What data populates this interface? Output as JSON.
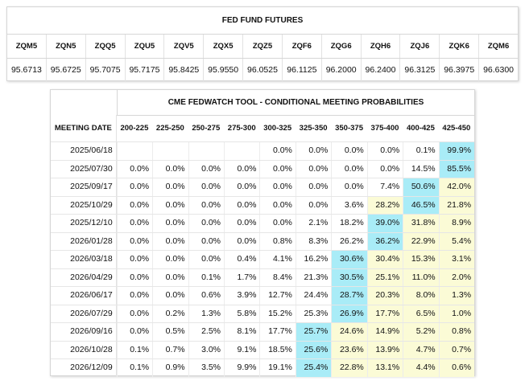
{
  "futures": {
    "title": "FED FUND FUTURES",
    "contracts": [
      {
        "code": "ZQM5",
        "price": "95.6713"
      },
      {
        "code": "ZQN5",
        "price": "95.6725"
      },
      {
        "code": "ZQQ5",
        "price": "95.7075"
      },
      {
        "code": "ZQU5",
        "price": "95.7175"
      },
      {
        "code": "ZQV5",
        "price": "95.8425"
      },
      {
        "code": "ZQX5",
        "price": "95.9550"
      },
      {
        "code": "ZQZ5",
        "price": "96.0525"
      },
      {
        "code": "ZQF6",
        "price": "96.1125"
      },
      {
        "code": "ZQG6",
        "price": "96.2000"
      },
      {
        "code": "ZQH6",
        "price": "96.2400"
      },
      {
        "code": "ZQJ6",
        "price": "96.3125"
      },
      {
        "code": "ZQK6",
        "price": "96.3975"
      },
      {
        "code": "ZQM6",
        "price": "96.6300"
      }
    ]
  },
  "fedwatch": {
    "title": "CME FEDWATCH TOOL - CONDITIONAL MEETING PROBABILITIES",
    "date_header": "MEETING DATE",
    "rate_headers": [
      "200-225",
      "225-250",
      "250-275",
      "275-300",
      "300-325",
      "325-350",
      "350-375",
      "375-400",
      "400-425",
      "425-450"
    ],
    "colors": {
      "blue": "#a9ecf7",
      "yellow": "#fbfbd6"
    },
    "rows": [
      {
        "date": "2025/06/18",
        "values": [
          "",
          "",
          "",
          "",
          "0.0%",
          "0.0%",
          "0.0%",
          "0.0%",
          "0.1%",
          "99.9%"
        ],
        "shade": [
          "",
          "",
          "",
          "",
          "",
          "",
          "",
          "",
          "",
          "blue"
        ]
      },
      {
        "date": "2025/07/30",
        "values": [
          "0.0%",
          "0.0%",
          "0.0%",
          "0.0%",
          "0.0%",
          "0.0%",
          "0.0%",
          "0.0%",
          "14.5%",
          "85.5%"
        ],
        "shade": [
          "",
          "",
          "",
          "",
          "",
          "",
          "",
          "",
          "",
          "blue"
        ]
      },
      {
        "date": "2025/09/17",
        "values": [
          "0.0%",
          "0.0%",
          "0.0%",
          "0.0%",
          "0.0%",
          "0.0%",
          "0.0%",
          "7.4%",
          "50.6%",
          "42.0%"
        ],
        "shade": [
          "",
          "",
          "",
          "",
          "",
          "",
          "",
          "",
          "blue",
          "yellow"
        ]
      },
      {
        "date": "2025/10/29",
        "values": [
          "0.0%",
          "0.0%",
          "0.0%",
          "0.0%",
          "0.0%",
          "0.0%",
          "3.6%",
          "28.2%",
          "46.5%",
          "21.8%"
        ],
        "shade": [
          "",
          "",
          "",
          "",
          "",
          "",
          "",
          "yellow",
          "blue",
          "yellow"
        ]
      },
      {
        "date": "2025/12/10",
        "values": [
          "0.0%",
          "0.0%",
          "0.0%",
          "0.0%",
          "0.0%",
          "2.1%",
          "18.2%",
          "39.0%",
          "31.8%",
          "8.9%"
        ],
        "shade": [
          "",
          "",
          "",
          "",
          "",
          "",
          "",
          "blue",
          "yellow",
          "yellow"
        ]
      },
      {
        "date": "2026/01/28",
        "values": [
          "0.0%",
          "0.0%",
          "0.0%",
          "0.0%",
          "0.8%",
          "8.3%",
          "26.2%",
          "36.2%",
          "22.9%",
          "5.4%"
        ],
        "shade": [
          "",
          "",
          "",
          "",
          "",
          "",
          "",
          "blue",
          "yellow",
          "yellow"
        ]
      },
      {
        "date": "2026/03/18",
        "values": [
          "0.0%",
          "0.0%",
          "0.0%",
          "0.4%",
          "4.1%",
          "16.2%",
          "30.6%",
          "30.4%",
          "15.3%",
          "3.1%"
        ],
        "shade": [
          "",
          "",
          "",
          "",
          "",
          "",
          "blue",
          "yellow",
          "yellow",
          "yellow"
        ]
      },
      {
        "date": "2026/04/29",
        "values": [
          "0.0%",
          "0.0%",
          "0.1%",
          "1.7%",
          "8.4%",
          "21.3%",
          "30.5%",
          "25.1%",
          "11.0%",
          "2.0%"
        ],
        "shade": [
          "",
          "",
          "",
          "",
          "",
          "",
          "blue",
          "yellow",
          "yellow",
          "yellow"
        ]
      },
      {
        "date": "2026/06/17",
        "values": [
          "0.0%",
          "0.0%",
          "0.6%",
          "3.9%",
          "12.7%",
          "24.4%",
          "28.7%",
          "20.3%",
          "8.0%",
          "1.3%"
        ],
        "shade": [
          "",
          "",
          "",
          "",
          "",
          "",
          "blue",
          "yellow",
          "yellow",
          "yellow"
        ]
      },
      {
        "date": "2026/07/29",
        "values": [
          "0.0%",
          "0.2%",
          "1.3%",
          "5.8%",
          "15.2%",
          "25.3%",
          "26.9%",
          "17.7%",
          "6.5%",
          "1.0%"
        ],
        "shade": [
          "",
          "",
          "",
          "",
          "",
          "",
          "blue",
          "yellow",
          "yellow",
          "yellow"
        ]
      },
      {
        "date": "2026/09/16",
        "values": [
          "0.0%",
          "0.5%",
          "2.5%",
          "8.1%",
          "17.7%",
          "25.7%",
          "24.6%",
          "14.9%",
          "5.2%",
          "0.8%"
        ],
        "shade": [
          "",
          "",
          "",
          "",
          "",
          "blue",
          "yellow",
          "yellow",
          "yellow",
          "yellow"
        ]
      },
      {
        "date": "2026/10/28",
        "values": [
          "0.1%",
          "0.7%",
          "3.0%",
          "9.1%",
          "18.5%",
          "25.6%",
          "23.6%",
          "13.9%",
          "4.7%",
          "0.7%"
        ],
        "shade": [
          "",
          "",
          "",
          "",
          "",
          "blue",
          "yellow",
          "yellow",
          "yellow",
          "yellow"
        ]
      },
      {
        "date": "2026/12/09",
        "values": [
          "0.1%",
          "0.9%",
          "3.5%",
          "9.9%",
          "19.1%",
          "25.4%",
          "22.8%",
          "13.1%",
          "4.4%",
          "0.6%"
        ],
        "shade": [
          "",
          "",
          "",
          "",
          "",
          "blue",
          "yellow",
          "yellow",
          "yellow",
          "yellow"
        ]
      }
    ]
  }
}
